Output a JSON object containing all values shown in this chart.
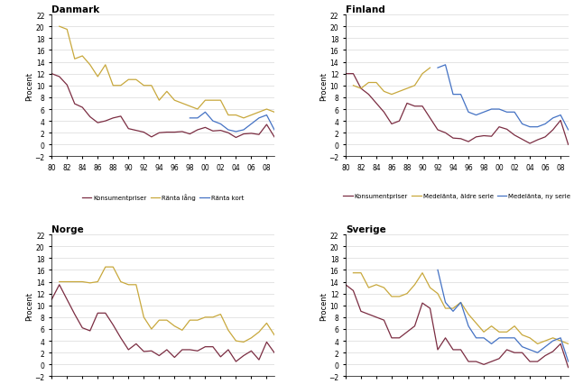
{
  "years": [
    1980,
    1981,
    1982,
    1983,
    1984,
    1985,
    1986,
    1987,
    1988,
    1989,
    1990,
    1991,
    1992,
    1993,
    1994,
    1995,
    1996,
    1997,
    1998,
    1999,
    2000,
    2001,
    2002,
    2003,
    2004,
    2005,
    2006,
    2007,
    2008,
    2009
  ],
  "danmark": {
    "title": "Danmark",
    "konsumentpriser": [
      12.0,
      11.5,
      10.1,
      6.9,
      6.3,
      4.7,
      3.7,
      4.0,
      4.5,
      4.8,
      2.7,
      2.4,
      2.1,
      1.3,
      2.0,
      2.1,
      2.1,
      2.2,
      1.8,
      2.5,
      2.9,
      2.3,
      2.4,
      2.0,
      1.2,
      1.8,
      1.9,
      1.7,
      3.4,
      1.3
    ],
    "ranta_lang": [
      null,
      20.0,
      19.5,
      14.5,
      15.0,
      13.5,
      11.5,
      13.5,
      10.0,
      10.0,
      11.0,
      11.0,
      10.0,
      10.0,
      7.5,
      9.0,
      7.5,
      7.0,
      6.5,
      6.0,
      7.5,
      7.5,
      7.5,
      5.0,
      5.0,
      4.5,
      5.0,
      5.5,
      6.0,
      5.5
    ],
    "ranta_kort": [
      null,
      null,
      null,
      null,
      null,
      null,
      null,
      null,
      null,
      null,
      null,
      null,
      null,
      null,
      null,
      null,
      null,
      null,
      4.5,
      4.5,
      5.5,
      4.0,
      3.5,
      2.5,
      2.2,
      2.5,
      3.5,
      4.5,
      5.0,
      2.5
    ],
    "legend": [
      "Konsumentpriser",
      "Ränta lång",
      "Ränta kort"
    ]
  },
  "finland": {
    "title": "Finland",
    "konsumentpriser": [
      12.0,
      12.0,
      9.5,
      8.5,
      7.0,
      5.5,
      3.5,
      4.0,
      7.0,
      6.5,
      6.5,
      4.5,
      2.5,
      2.0,
      1.1,
      1.0,
      0.5,
      1.3,
      1.5,
      1.4,
      3.0,
      2.6,
      1.6,
      0.9,
      0.2,
      0.8,
      1.3,
      2.5,
      4.1,
      0.0
    ],
    "medelranta_aldre": [
      null,
      10.0,
      9.5,
      10.5,
      10.5,
      9.0,
      8.5,
      null,
      null,
      10.0,
      12.0,
      13.0,
      null,
      null,
      null,
      null,
      null,
      null,
      null,
      null,
      null,
      null,
      null,
      null,
      null,
      null,
      null,
      null,
      null,
      null
    ],
    "medelranta_ny": [
      null,
      null,
      null,
      null,
      null,
      null,
      null,
      null,
      null,
      null,
      null,
      null,
      13.0,
      13.5,
      8.5,
      8.5,
      5.5,
      5.0,
      5.5,
      6.0,
      6.0,
      5.5,
      5.5,
      3.5,
      3.0,
      3.0,
      3.5,
      4.5,
      5.0,
      2.5
    ],
    "legend": [
      "Konsumentpriser",
      "Medelänta, äldre serie",
      "Medelänta, ny serie"
    ]
  },
  "norge": {
    "title": "Norge",
    "konsumentpriser": [
      11.0,
      13.5,
      11.0,
      8.5,
      6.2,
      5.7,
      8.7,
      8.7,
      6.7,
      4.5,
      2.5,
      3.5,
      2.2,
      2.3,
      1.5,
      2.5,
      1.2,
      2.5,
      2.5,
      2.3,
      3.0,
      3.0,
      1.3,
      2.5,
      0.5,
      1.5,
      2.3,
      0.8,
      3.8,
      2.0
    ],
    "ranta": [
      null,
      14.0,
      14.0,
      14.0,
      14.0,
      13.8,
      14.0,
      16.5,
      16.5,
      14.0,
      13.5,
      13.5,
      8.0,
      6.0,
      7.5,
      7.5,
      6.5,
      5.8,
      7.5,
      7.5,
      8.0,
      8.0,
      8.5,
      5.8,
      4.0,
      3.8,
      4.5,
      5.5,
      7.0,
      5.0
    ],
    "legend": [
      "Konsumentpriser",
      "Ränta"
    ]
  },
  "sverige": {
    "title": "Sverige",
    "konsumentpriser": [
      13.5,
      12.5,
      9.0,
      8.5,
      8.0,
      7.5,
      4.5,
      4.5,
      5.5,
      6.5,
      10.4,
      9.5,
      2.5,
      4.5,
      2.5,
      2.5,
      0.5,
      0.5,
      0.0,
      0.5,
      1.0,
      2.5,
      2.0,
      2.0,
      0.5,
      0.5,
      1.5,
      2.2,
      3.5,
      -0.5
    ],
    "ranta_lang": [
      null,
      15.5,
      15.5,
      13.0,
      13.5,
      13.0,
      11.5,
      11.5,
      12.0,
      13.5,
      15.5,
      13.0,
      12.0,
      9.5,
      9.5,
      10.5,
      8.5,
      7.0,
      5.5,
      6.5,
      5.5,
      5.5,
      6.5,
      5.0,
      4.5,
      3.5,
      4.0,
      4.5,
      4.0,
      3.5
    ],
    "ranta_kort": [
      null,
      null,
      null,
      null,
      null,
      null,
      null,
      null,
      null,
      null,
      null,
      null,
      16.0,
      10.5,
      9.0,
      10.5,
      6.5,
      4.5,
      4.5,
      3.5,
      4.5,
      4.5,
      4.5,
      3.0,
      2.5,
      2.0,
      3.0,
      4.0,
      4.5,
      0.5
    ],
    "legend": [
      "Konsumentpriser",
      "Ränta lång",
      "Ränta kort"
    ]
  },
  "colors": {
    "konsumentpriser": "#7B2D42",
    "long_rate": "#C8A83C",
    "short_rate": "#4472C4"
  },
  "ylim": [
    -2,
    22
  ],
  "yticks": [
    -2,
    0,
    2,
    4,
    6,
    8,
    10,
    12,
    14,
    16,
    18,
    20,
    22
  ],
  "ylabel": "Procent"
}
